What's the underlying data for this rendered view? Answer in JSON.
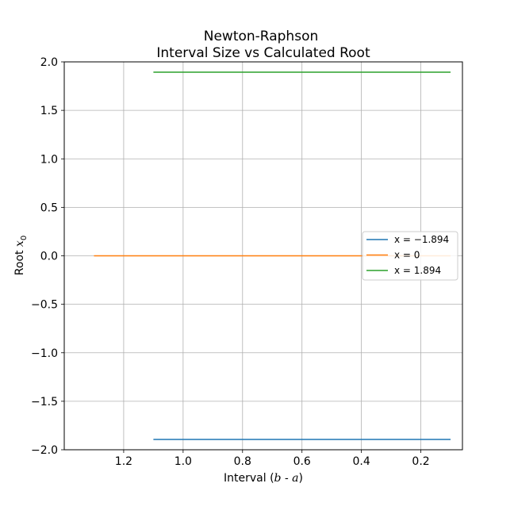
{
  "chart_data": {
    "type": "line",
    "title": [
      "Newton-Raphson",
      "Interval Size vs Calculated Root"
    ],
    "xlabel": {
      "text": "Interval (",
      "math": "b - a",
      "suffix": ")"
    },
    "ylabel": {
      "text": "Root ",
      "math": "x",
      "sub": "0"
    },
    "xlim": [
      1.4,
      0.06
    ],
    "ylim": [
      -2.0,
      2.0
    ],
    "x_inverted": true,
    "xticks": [
      1.2,
      1.0,
      0.8,
      0.6,
      0.4,
      0.2
    ],
    "xtick_labels": [
      "1.2",
      "1.0",
      "0.8",
      "0.6",
      "0.4",
      "0.2"
    ],
    "yticks": [
      2.0,
      1.5,
      1.0,
      0.5,
      0.0,
      -0.5,
      -1.0,
      -1.5,
      -2.0
    ],
    "ytick_labels": [
      "2.0",
      "1.5",
      "1.0",
      "0.5",
      "0.0",
      "−0.5",
      "−1.0",
      "−1.5",
      "−2.0"
    ],
    "grid": true,
    "legend_position": "center-right",
    "series": [
      {
        "name": "x = −1.894",
        "legend_math": "x = −1.894",
        "color": "#1f77b4",
        "x": [
          1.1,
          0.1
        ],
        "y": [
          -1.894,
          -1.894
        ]
      },
      {
        "name": "x = 0",
        "legend_math": "x = 0",
        "color": "#ff7f0e",
        "x": [
          1.3,
          0.1
        ],
        "y": [
          0.0,
          0.0
        ]
      },
      {
        "name": "x = 1.894",
        "legend_math": "x = 1.894",
        "color": "#2ca02c",
        "x": [
          1.1,
          0.1
        ],
        "y": [
          1.894,
          1.894
        ]
      }
    ]
  }
}
